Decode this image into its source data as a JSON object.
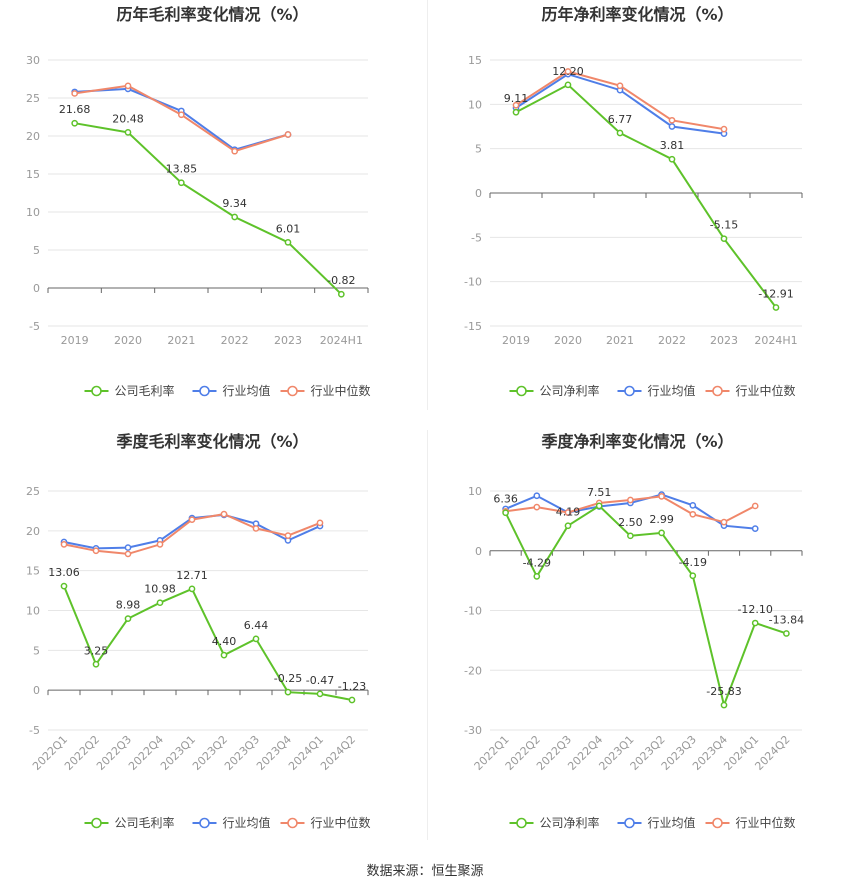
{
  "colors": {
    "company": "#5ec22a",
    "avg": "#4f7ee8",
    "median": "#f0876a",
    "grid": "#e6e6e6",
    "axis": "#999999"
  },
  "source_label": "数据来源：恒生聚源",
  "chart_data": [
    {
      "type": "line",
      "title": "历年毛利率变化情况（%）",
      "categories": [
        "2019",
        "2020",
        "2021",
        "2022",
        "2023",
        "2024H1"
      ],
      "ylim": [
        -5,
        30
      ],
      "yticks": [
        30,
        25,
        20,
        15,
        10,
        5,
        0,
        -5
      ],
      "xlabel_rotate": false,
      "series": [
        {
          "name": "公司毛利率",
          "role": "company",
          "values": [
            21.68,
            20.48,
            13.85,
            9.34,
            6.01,
            -0.82
          ],
          "labels": [
            "21.68",
            "20.48",
            "13.85",
            "9.34",
            "6.01",
            "-0.82"
          ]
        },
        {
          "name": "行业均值",
          "role": "avg",
          "values": [
            25.8,
            26.2,
            23.3,
            18.2,
            20.2,
            null
          ]
        },
        {
          "name": "行业中位数",
          "role": "median",
          "values": [
            25.6,
            26.6,
            22.8,
            18.0,
            20.2,
            null
          ]
        }
      ]
    },
    {
      "type": "line",
      "title": "历年净利率变化情况（%）",
      "categories": [
        "2019",
        "2020",
        "2021",
        "2022",
        "2023",
        "2024H1"
      ],
      "ylim": [
        -15,
        15
      ],
      "yticks": [
        15,
        10,
        5,
        0,
        -5,
        -10,
        -15
      ],
      "xlabel_rotate": false,
      "series": [
        {
          "name": "公司净利率",
          "role": "company",
          "values": [
            9.11,
            12.2,
            6.77,
            3.81,
            -5.15,
            -12.91
          ],
          "labels": [
            "9.11",
            "12.20",
            "6.77",
            "3.81",
            "-5.15",
            "-12.91"
          ]
        },
        {
          "name": "行业均值",
          "role": "avg",
          "values": [
            9.6,
            13.4,
            11.6,
            7.5,
            6.7,
            null
          ]
        },
        {
          "name": "行业中位数",
          "role": "median",
          "values": [
            9.9,
            13.7,
            12.1,
            8.2,
            7.2,
            null
          ]
        }
      ]
    },
    {
      "type": "line",
      "title": "季度毛利率变化情况（%）",
      "categories": [
        "2022Q1",
        "2022Q2",
        "2022Q3",
        "2022Q4",
        "2023Q1",
        "2023Q2",
        "2023Q3",
        "2023Q4",
        "2024Q1",
        "2024Q2"
      ],
      "ylim": [
        -5,
        25
      ],
      "yticks": [
        25,
        20,
        15,
        10,
        5,
        0,
        -5
      ],
      "xlabel_rotate": true,
      "series": [
        {
          "name": "公司毛利率",
          "role": "company",
          "values": [
            13.06,
            3.25,
            8.98,
            10.98,
            12.71,
            4.4,
            6.44,
            -0.25,
            -0.47,
            -1.23
          ],
          "labels": [
            "13.06",
            "3.25",
            "8.98",
            "10.98",
            "12.71",
            "4.40",
            "6.44",
            "-0.25",
            "-0.47",
            "-1.23"
          ]
        },
        {
          "name": "行业均值",
          "role": "avg",
          "values": [
            18.6,
            17.8,
            17.9,
            18.8,
            21.6,
            22.0,
            20.9,
            18.8,
            20.6,
            null
          ]
        },
        {
          "name": "行业中位数",
          "role": "median",
          "values": [
            18.3,
            17.5,
            17.1,
            18.3,
            21.4,
            22.1,
            20.3,
            19.4,
            21.0,
            null
          ]
        }
      ]
    },
    {
      "type": "line",
      "title": "季度净利率变化情况（%）",
      "categories": [
        "2022Q1",
        "2022Q2",
        "2022Q3",
        "2022Q4",
        "2023Q1",
        "2023Q2",
        "2023Q3",
        "2023Q4",
        "2024Q1",
        "2024Q2"
      ],
      "ylim": [
        -30,
        10
      ],
      "yticks": [
        10,
        0,
        -10,
        -20,
        -30
      ],
      "xlabel_rotate": true,
      "series": [
        {
          "name": "公司净利率",
          "role": "company",
          "values": [
            6.36,
            -4.29,
            4.19,
            7.51,
            2.5,
            2.99,
            -4.19,
            -25.83,
            -12.1,
            -13.84
          ],
          "labels": [
            "6.36",
            "-4.29",
            "4.19",
            "7.51",
            "2.50",
            "2.99",
            "-4.19",
            "-25.83",
            "-12.10",
            "-13.84"
          ]
        },
        {
          "name": "行业均值",
          "role": "avg",
          "values": [
            7.0,
            9.2,
            6.4,
            7.4,
            8.0,
            9.4,
            7.6,
            4.2,
            3.7,
            null
          ]
        },
        {
          "name": "行业中位数",
          "role": "median",
          "values": [
            6.6,
            7.3,
            6.4,
            8.0,
            8.5,
            9.1,
            6.1,
            4.8,
            7.5,
            null
          ]
        }
      ]
    }
  ]
}
